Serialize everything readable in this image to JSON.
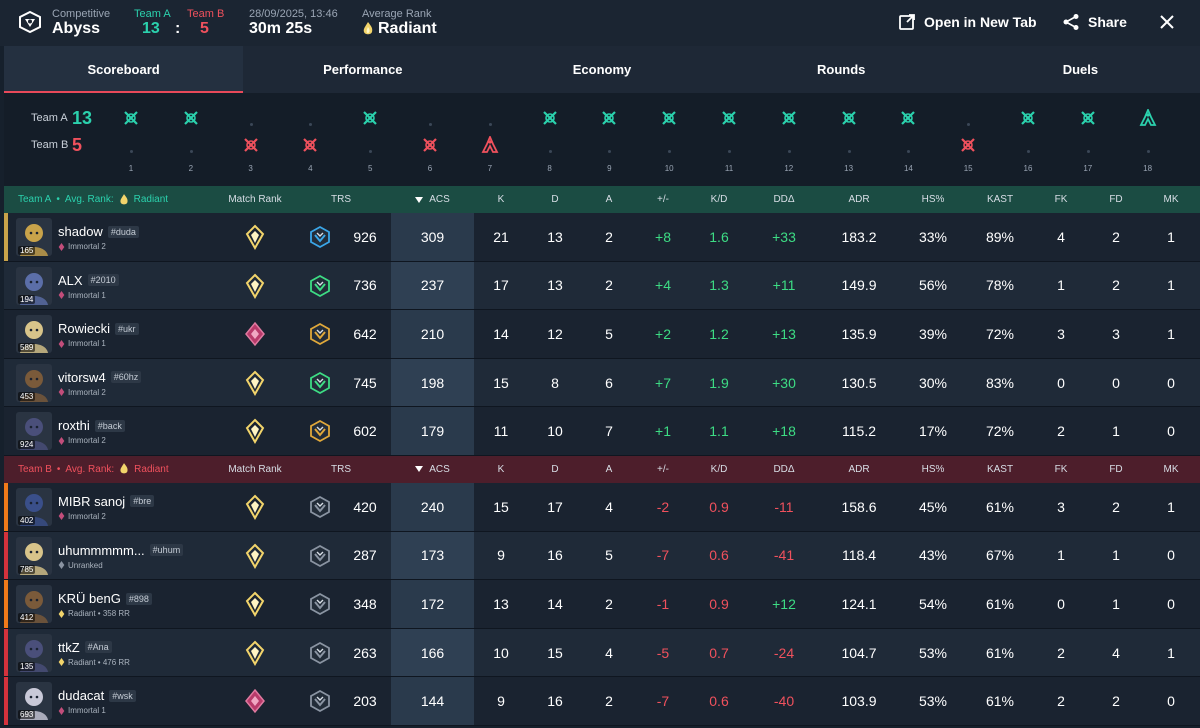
{
  "header": {
    "mode": "Competitive",
    "map": "Abyss",
    "team_a_label": "Team A",
    "team_b_label": "Team B",
    "team_a_score": "13",
    "colon": ":",
    "team_b_score": "5",
    "date": "28/09/2025, 13:46",
    "duration": "30m 25s",
    "avg_rank_label": "Average Rank",
    "avg_rank_value": "Radiant",
    "open_label": "Open in New Tab",
    "share_label": "Share"
  },
  "tabs": [
    {
      "label": "Scoreboard"
    },
    {
      "label": "Performance"
    },
    {
      "label": "Economy"
    },
    {
      "label": "Rounds"
    },
    {
      "label": "Duels"
    }
  ],
  "timeline": {
    "team_a_label": "Team A",
    "team_a_score": "13",
    "team_b_label": "Team B",
    "team_b_score": "5",
    "rounds": [
      {
        "n": "1",
        "w": "a",
        "t": "elim"
      },
      {
        "n": "2",
        "w": "a",
        "t": "elim"
      },
      {
        "n": "3",
        "w": "b",
        "t": "elim"
      },
      {
        "n": "4",
        "w": "b",
        "t": "elim"
      },
      {
        "n": "5",
        "w": "a",
        "t": "elim"
      },
      {
        "n": "6",
        "w": "b",
        "t": "elim"
      },
      {
        "n": "7",
        "w": "b",
        "t": "spike"
      },
      {
        "n": "8",
        "w": "a",
        "t": "elim"
      },
      {
        "n": "9",
        "w": "a",
        "t": "elim"
      },
      {
        "n": "10",
        "w": "a",
        "t": "elim"
      },
      {
        "n": "11",
        "w": "a",
        "t": "elim"
      },
      {
        "n": "12",
        "w": "a",
        "t": "elim"
      },
      {
        "n": "13",
        "w": "a",
        "t": "elim"
      },
      {
        "n": "14",
        "w": "a",
        "t": "elim"
      },
      {
        "n": "15",
        "w": "b",
        "t": "elim"
      },
      {
        "n": "16",
        "w": "a",
        "t": "elim"
      },
      {
        "n": "17",
        "w": "a",
        "t": "elim"
      },
      {
        "n": "18",
        "w": "a",
        "t": "spike"
      }
    ]
  },
  "columns": {
    "match_rank": "Match Rank",
    "trs": "TRS",
    "acs": "ACS",
    "k": "K",
    "d": "D",
    "a": "A",
    "pm": "+/-",
    "kd": "K/D",
    "dda": "DDΔ",
    "adr": "ADR",
    "hs": "HS%",
    "kast": "KAST",
    "fk": "FK",
    "fd": "FD",
    "mk": "MK"
  },
  "team_a": {
    "label": "Team A",
    "sep": "•",
    "avg_label": "Avg. Rank:",
    "avg_value": "Radiant",
    "players": [
      {
        "name": "shadow",
        "tag": "#duda",
        "rank": "Immortal 2",
        "level": "165",
        "trs": "926",
        "acs": "309",
        "k": "21",
        "d": "13",
        "a": "2",
        "pm": "+8",
        "kd": "1.6",
        "dda": "+33",
        "adr": "183.2",
        "hs": "33%",
        "kast": "89%",
        "fk": "4",
        "fd": "2",
        "mk": "1",
        "mr": "radiant",
        "trs_icon": "blue",
        "agent_color": "#c9a34a"
      },
      {
        "name": "ALX",
        "tag": "#2010",
        "rank": "Immortal 1",
        "level": "194",
        "trs": "736",
        "acs": "237",
        "k": "17",
        "d": "13",
        "a": "2",
        "pm": "+4",
        "kd": "1.3",
        "dda": "+11",
        "adr": "149.9",
        "hs": "56%",
        "kast": "78%",
        "fk": "1",
        "fd": "2",
        "mk": "1",
        "mr": "radiant",
        "trs_icon": "green",
        "agent_color": "#5b6ea8"
      },
      {
        "name": "Rowiecki",
        "tag": "#ukr",
        "rank": "Immortal 1",
        "level": "589",
        "trs": "642",
        "acs": "210",
        "k": "14",
        "d": "12",
        "a": "5",
        "pm": "+2",
        "kd": "1.2",
        "dda": "+13",
        "adr": "135.9",
        "hs": "39%",
        "kast": "72%",
        "fk": "3",
        "fd": "3",
        "mk": "1",
        "mr": "immortal",
        "trs_icon": "gold",
        "agent_color": "#d8c48a"
      },
      {
        "name": "vitorsw4",
        "tag": "#60hz",
        "rank": "Immortal 2",
        "level": "453",
        "trs": "745",
        "acs": "198",
        "k": "15",
        "d": "8",
        "a": "6",
        "pm": "+7",
        "kd": "1.9",
        "dda": "+30",
        "adr": "130.5",
        "hs": "30%",
        "kast": "83%",
        "fk": "0",
        "fd": "0",
        "mk": "0",
        "mr": "radiant",
        "trs_icon": "green",
        "agent_color": "#7a5a3a"
      },
      {
        "name": "roxthi",
        "tag": "#back",
        "rank": "Immortal 2",
        "level": "924",
        "trs": "602",
        "acs": "179",
        "k": "11",
        "d": "10",
        "a": "7",
        "pm": "+1",
        "kd": "1.1",
        "dda": "+18",
        "adr": "115.2",
        "hs": "17%",
        "kast": "72%",
        "fk": "2",
        "fd": "1",
        "mk": "0",
        "mr": "radiant",
        "trs_icon": "gold",
        "agent_color": "#4a4f7a"
      }
    ]
  },
  "team_b": {
    "label": "Team B",
    "sep": "•",
    "avg_label": "Avg. Rank:",
    "avg_value": "Radiant",
    "players": [
      {
        "name": "MIBR sanoj",
        "tag": "#bre",
        "rank": "Immortal 2",
        "level": "402",
        "trs": "420",
        "acs": "240",
        "k": "15",
        "d": "17",
        "a": "4",
        "pm": "-2",
        "kd": "0.9",
        "dda": "-11",
        "adr": "158.6",
        "hs": "45%",
        "kast": "61%",
        "fk": "3",
        "fd": "2",
        "mk": "1",
        "mr": "radiant",
        "trs_icon": "gray",
        "agent_color": "#3a4f8a",
        "side": "#f07a1a"
      },
      {
        "name": "uhummmmm...",
        "tag": "#uhum",
        "rank": "Unranked",
        "level": "785",
        "trs": "287",
        "acs": "173",
        "k": "9",
        "d": "16",
        "a": "5",
        "pm": "-7",
        "kd": "0.6",
        "dda": "-41",
        "adr": "118.4",
        "hs": "43%",
        "kast": "67%",
        "fk": "1",
        "fd": "1",
        "mk": "0",
        "mr": "radiant",
        "trs_icon": "gray",
        "agent_color": "#d8c48a",
        "side": "#d4323c"
      },
      {
        "name": "KRÜ benG",
        "tag": "#898",
        "rank": "Radiant • 358 RR",
        "level": "412",
        "trs": "348",
        "acs": "172",
        "k": "13",
        "d": "14",
        "a": "2",
        "pm": "-1",
        "kd": "0.9",
        "dda": "+12",
        "adr": "124.1",
        "hs": "54%",
        "kast": "61%",
        "fk": "0",
        "fd": "1",
        "mk": "0",
        "mr": "radiant",
        "trs_icon": "gray",
        "agent_color": "#7a5a3a",
        "side": "#f07a1a"
      },
      {
        "name": "ttkZ",
        "tag": "#Ana",
        "rank": "Radiant • 476 RR",
        "level": "135",
        "trs": "263",
        "acs": "166",
        "k": "10",
        "d": "15",
        "a": "4",
        "pm": "-5",
        "kd": "0.7",
        "dda": "-24",
        "adr": "104.7",
        "hs": "53%",
        "kast": "61%",
        "fk": "2",
        "fd": "4",
        "mk": "1",
        "mr": "radiant",
        "trs_icon": "gray",
        "agent_color": "#4a4f7a",
        "side": "#d4323c"
      },
      {
        "name": "dudacat",
        "tag": "#wsk",
        "rank": "Immortal 1",
        "level": "693",
        "trs": "203",
        "acs": "144",
        "k": "9",
        "d": "16",
        "a": "2",
        "pm": "-7",
        "kd": "0.6",
        "dda": "-40",
        "adr": "103.9",
        "hs": "53%",
        "kast": "61%",
        "fk": "2",
        "fd": "2",
        "mk": "0",
        "mr": "immortal",
        "trs_icon": "gray",
        "agent_color": "#c9c9d8",
        "side": "#d4323c"
      }
    ]
  },
  "colors": {
    "team_a": "#2bd1ad",
    "team_b": "#f0515d",
    "positive": "#3ddc84",
    "negative": "#f0515d",
    "accent": "#e8495a"
  }
}
